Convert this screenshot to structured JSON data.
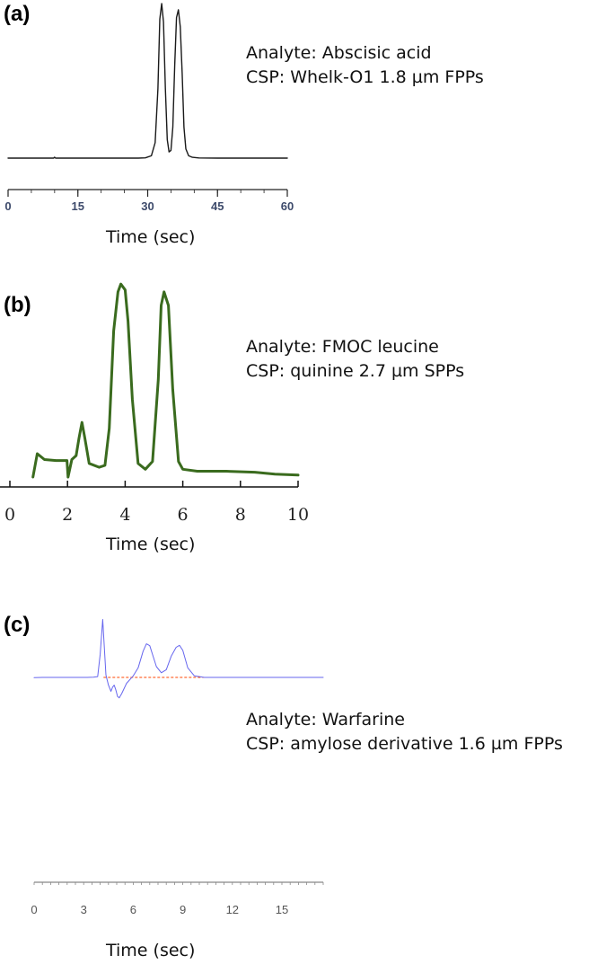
{
  "chart_data": [
    {
      "type": "line",
      "panel_label": "(a)",
      "annotations": [
        "Analyte: Abscisic acid",
        "CSP: Whelk-O1 1.8 µm FPPs"
      ],
      "xlabel": "Time (sec)",
      "ylabel": "",
      "xlim": [
        0,
        60
      ],
      "xticks": [
        0,
        15,
        30,
        45,
        60
      ],
      "x_minor_step": 5,
      "grid": false,
      "series": [
        {
          "color": "#1a1a1a",
          "x": [
            0,
            9.8,
            10,
            10.2,
            11,
            20,
            28,
            29.5,
            30.8,
            31.6,
            32.2,
            32.6,
            33,
            33.4,
            33.8,
            34.2,
            34.6,
            35,
            35.4,
            35.8,
            36.2,
            36.6,
            37,
            37.4,
            37.8,
            38.2,
            38.8,
            39.6,
            41,
            45,
            60
          ],
          "y": [
            0,
            0,
            0.6,
            0,
            0,
            0,
            0,
            0.2,
            1.5,
            10,
            45,
            90,
            100,
            88,
            45,
            12,
            4,
            5,
            20,
            60,
            91,
            96,
            85,
            55,
            20,
            6,
            1.5,
            0.5,
            0.1,
            0,
            0
          ]
        }
      ]
    },
    {
      "type": "line",
      "panel_label": "(b)",
      "annotations": [
        "Analyte: FMOC leucine",
        "CSP: quinine 2.7 µm SPPs"
      ],
      "xlabel": "Time (sec)",
      "ylabel": "",
      "xlim": [
        0,
        10
      ],
      "xticks": [
        0,
        2,
        4,
        6,
        8,
        10
      ],
      "grid": false,
      "series": [
        {
          "color": "#3a6b1e",
          "x": [
            0.8,
            0.95,
            1.2,
            1.6,
            1.98,
            2.02,
            2.15,
            2.3,
            2.4,
            2.5,
            2.6,
            2.75,
            3.1,
            3.3,
            3.45,
            3.6,
            3.75,
            3.85,
            4.0,
            4.1,
            4.25,
            4.45,
            4.7,
            4.95,
            5.15,
            5.25,
            5.35,
            5.5,
            5.65,
            5.85,
            6.0,
            6.5,
            7.5,
            8.5,
            9.2,
            10.0
          ],
          "y": [
            0,
            12,
            9,
            8.5,
            8.5,
            0,
            9,
            11,
            20,
            28,
            20,
            7,
            5,
            6,
            25,
            75,
            95,
            99,
            96,
            80,
            40,
            7,
            4,
            8,
            50,
            88,
            95,
            88,
            45,
            8,
            4,
            3,
            3,
            2.5,
            1.5,
            1
          ]
        }
      ]
    },
    {
      "type": "line",
      "panel_label": "(c)",
      "annotations": [
        "Analyte: Warfarine",
        "CSP: amylose derivative 1.6 µm FPPs"
      ],
      "xlabel": "Time (sec)",
      "ylabel": "",
      "xlim": [
        0,
        17.5
      ],
      "xticks": [
        0,
        3,
        6,
        9,
        12,
        15
      ],
      "tick_labels": [
        "0",
        "3",
        "6",
        "9",
        "12",
        "15"
      ],
      "x_minor_step": 0.5,
      "grid": false,
      "baseline_color": "#ff4500",
      "series": [
        {
          "color": "#6666ee",
          "x": [
            0,
            0.5,
            2.0,
            3.2,
            3.6,
            3.85,
            4.0,
            4.15,
            4.35,
            4.5,
            4.65,
            4.75,
            4.85,
            4.95,
            5.05,
            5.15,
            5.3,
            5.6,
            6.0,
            6.3,
            6.6,
            6.8,
            7.0,
            7.2,
            7.4,
            7.7,
            8.0,
            8.3,
            8.6,
            8.8,
            9.0,
            9.3,
            9.7,
            10.3,
            12,
            15,
            17.5
          ],
          "y": [
            -0.8,
            0,
            0,
            0,
            0.5,
            2,
            60,
            150,
            6,
            -20,
            -36,
            -25,
            -20,
            -33,
            -49,
            -53,
            -42,
            -15,
            4,
            25,
            68,
            87,
            82,
            55,
            28,
            12,
            20,
            55,
            78,
            83,
            70,
            25,
            4,
            0,
            0,
            0,
            0
          ]
        }
      ]
    }
  ]
}
